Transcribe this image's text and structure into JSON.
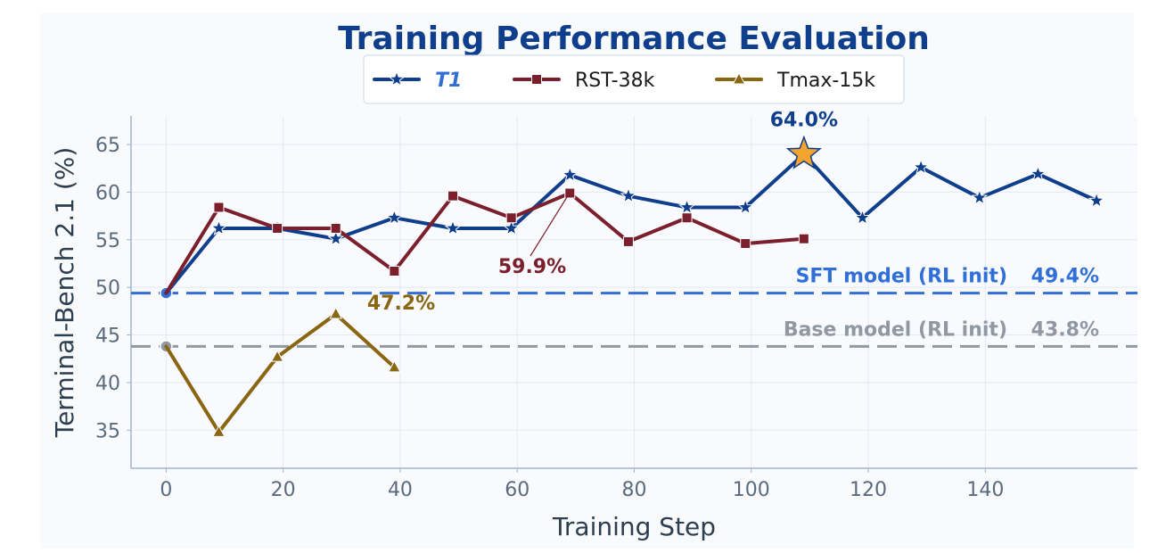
{
  "chart_data": {
    "type": "line",
    "title": "Training Performance Evaluation",
    "xlabel": "Training Step",
    "ylabel": "Terminal-Bench 2.1 (%)",
    "xlim": [
      -6,
      166
    ],
    "ylim": [
      31,
      68
    ],
    "x_ticks": [
      0,
      20,
      40,
      60,
      80,
      100,
      120,
      140
    ],
    "y_ticks": [
      35,
      40,
      45,
      50,
      55,
      60,
      65
    ],
    "grid": true,
    "legend_position": "top-center",
    "series": [
      {
        "name": "T1",
        "color": "#0f3f8c",
        "marker": "star",
        "x": [
          0,
          9,
          19,
          29,
          39,
          49,
          59,
          69,
          79,
          89,
          99,
          109,
          119,
          129,
          139,
          149,
          159
        ],
        "y": [
          49.4,
          56.2,
          56.2,
          55.1,
          57.3,
          56.2,
          56.2,
          61.8,
          59.6,
          58.4,
          58.4,
          64.0,
          57.3,
          62.6,
          59.4,
          61.9,
          59.1
        ]
      },
      {
        "name": "RST-38k",
        "color": "#7a1f2b",
        "marker": "square",
        "x": [
          0,
          9,
          19,
          29,
          39,
          49,
          59,
          69,
          79,
          89,
          99,
          109
        ],
        "y": [
          49.4,
          58.4,
          56.2,
          56.2,
          51.7,
          59.6,
          57.3,
          59.9,
          54.8,
          57.3,
          54.6,
          55.1
        ]
      },
      {
        "name": "Tmax-15k",
        "color": "#8a6512",
        "marker": "triangle",
        "x": [
          0,
          9,
          19,
          29,
          39
        ],
        "y": [
          43.8,
          34.8,
          42.7,
          47.2,
          41.6
        ]
      }
    ],
    "reference_lines": [
      {
        "label": "SFT model (RL init)",
        "value_label": "49.4%",
        "y": 49.4,
        "color": "#2f6fd6"
      },
      {
        "label": "Base model (RL init)",
        "value_label": "43.8%",
        "y": 43.8,
        "color": "#8f98a3"
      }
    ],
    "annotations": [
      {
        "text": "64.0%",
        "x": 109,
        "y": 64.0,
        "color": "#0f3f8c"
      },
      {
        "text": "59.9%",
        "x": 69,
        "y": 59.9,
        "color": "#7a1f2b"
      },
      {
        "text": "47.2%",
        "x": 29,
        "y": 47.2,
        "color": "#8a6512"
      }
    ]
  }
}
